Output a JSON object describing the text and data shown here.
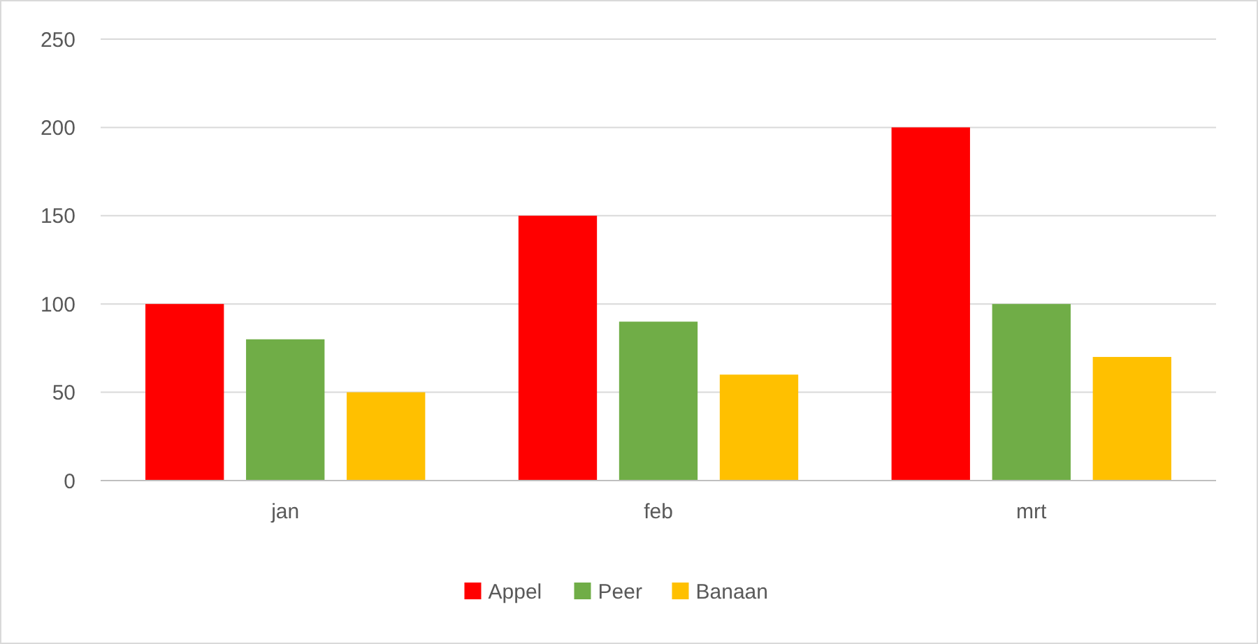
{
  "chart_data": {
    "type": "bar",
    "categories": [
      "jan",
      "feb",
      "mrt"
    ],
    "series": [
      {
        "name": "Appel",
        "color": "#ff0000",
        "values": [
          100,
          150,
          200
        ]
      },
      {
        "name": "Peer",
        "color": "#70ad47",
        "values": [
          80,
          90,
          100
        ]
      },
      {
        "name": "Banaan",
        "color": "#ffc000",
        "values": [
          50,
          60,
          70
        ]
      }
    ],
    "ylim": [
      0,
      250
    ],
    "yticks": [
      0,
      50,
      100,
      150,
      200,
      250
    ],
    "grid": "y",
    "legend": "bottom"
  }
}
